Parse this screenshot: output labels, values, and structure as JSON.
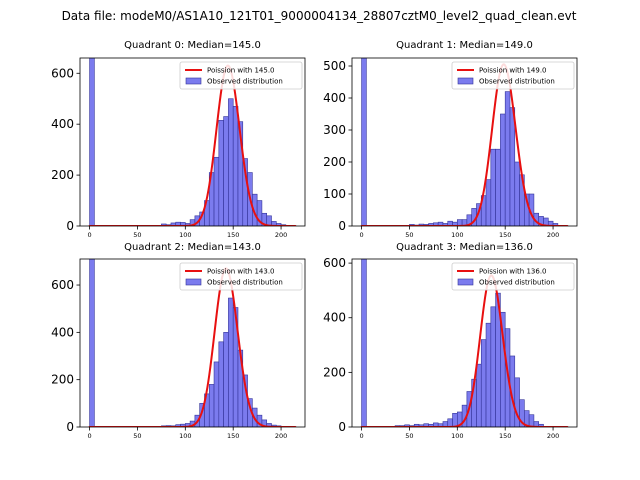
{
  "figure": {
    "title": "Data file: modeM0/AS1A10_121T01_9000004134_28807cztM0_level2_quad_clean.evt"
  },
  "colors": {
    "bar_fill": "#7b7bee",
    "bar_edge": "#333399",
    "fit_line": "#e81010"
  },
  "chart_data": [
    {
      "type": "bar",
      "title": "Quadrant 0: Median=145.0",
      "median": 145.0,
      "xlim": [
        -10,
        225
      ],
      "ylim": [
        0,
        660
      ],
      "xticks": [
        0,
        50,
        100,
        150,
        200
      ],
      "yticks": [
        0,
        200,
        400,
        600
      ],
      "bin_width": 5,
      "bins": [
        [
          0,
          660
        ],
        [
          75,
          8
        ],
        [
          80,
          5
        ],
        [
          85,
          12
        ],
        [
          90,
          15
        ],
        [
          95,
          14
        ],
        [
          100,
          10
        ],
        [
          105,
          25
        ],
        [
          110,
          40
        ],
        [
          115,
          55
        ],
        [
          120,
          100
        ],
        [
          125,
          210
        ],
        [
          130,
          270
        ],
        [
          135,
          415
        ],
        [
          140,
          430
        ],
        [
          145,
          500
        ],
        [
          150,
          470
        ],
        [
          155,
          410
        ],
        [
          160,
          265
        ],
        [
          165,
          210
        ],
        [
          170,
          125
        ],
        [
          175,
          100
        ],
        [
          180,
          50
        ],
        [
          185,
          40
        ],
        [
          190,
          18
        ],
        [
          195,
          10
        ],
        [
          200,
          5
        ]
      ],
      "fit": {
        "lambda": 145.0,
        "amplitude": 630
      },
      "legend": [
        "Poission with 145.0",
        "Observed distribution"
      ]
    },
    {
      "type": "bar",
      "title": "Quadrant 1: Median=149.0",
      "median": 149.0,
      "xlim": [
        -10,
        225
      ],
      "ylim": [
        0,
        525
      ],
      "xticks": [
        0,
        50,
        100,
        150,
        200
      ],
      "yticks": [
        0,
        100,
        200,
        300,
        400,
        500
      ],
      "bin_width": 5,
      "bins": [
        [
          0,
          525
        ],
        [
          50,
          5
        ],
        [
          55,
          3
        ],
        [
          60,
          6
        ],
        [
          65,
          5
        ],
        [
          70,
          8
        ],
        [
          75,
          10
        ],
        [
          80,
          12
        ],
        [
          85,
          8
        ],
        [
          90,
          15
        ],
        [
          95,
          12
        ],
        [
          100,
          20
        ],
        [
          105,
          20
        ],
        [
          110,
          35
        ],
        [
          115,
          55
        ],
        [
          120,
          70
        ],
        [
          125,
          95
        ],
        [
          130,
          145
        ],
        [
          135,
          240
        ],
        [
          140,
          240
        ],
        [
          145,
          350
        ],
        [
          150,
          420
        ],
        [
          155,
          370
        ],
        [
          160,
          200
        ],
        [
          165,
          160
        ],
        [
          170,
          100
        ],
        [
          175,
          100
        ],
        [
          180,
          40
        ],
        [
          185,
          30
        ],
        [
          190,
          25
        ],
        [
          195,
          15
        ],
        [
          200,
          8
        ]
      ],
      "fit": {
        "lambda": 149.0,
        "amplitude": 505
      },
      "legend": [
        "Poission with 149.0",
        "Observed distribution"
      ]
    },
    {
      "type": "bar",
      "title": "Quadrant 2: Median=143.0",
      "median": 143.0,
      "xlim": [
        -10,
        225
      ],
      "ylim": [
        0,
        710
      ],
      "xticks": [
        0,
        50,
        100,
        150,
        200
      ],
      "yticks": [
        0,
        200,
        400,
        600
      ],
      "bin_width": 5,
      "bins": [
        [
          0,
          710
        ],
        [
          75,
          5
        ],
        [
          80,
          6
        ],
        [
          85,
          5
        ],
        [
          90,
          10
        ],
        [
          95,
          12
        ],
        [
          100,
          15
        ],
        [
          105,
          25
        ],
        [
          110,
          50
        ],
        [
          115,
          100
        ],
        [
          120,
          140
        ],
        [
          125,
          180
        ],
        [
          130,
          275
        ],
        [
          135,
          360
        ],
        [
          140,
          400
        ],
        [
          145,
          545
        ],
        [
          150,
          505
        ],
        [
          155,
          325
        ],
        [
          160,
          220
        ],
        [
          165,
          120
        ],
        [
          170,
          80
        ],
        [
          175,
          50
        ],
        [
          180,
          30
        ],
        [
          185,
          15
        ],
        [
          190,
          8
        ],
        [
          195,
          5
        ]
      ],
      "fit": {
        "lambda": 143.0,
        "amplitude": 670
      },
      "legend": [
        "Poission with 143.0",
        "Observed distribution"
      ]
    },
    {
      "type": "bar",
      "title": "Quadrant 3: Median=136.0",
      "median": 136.0,
      "xlim": [
        -10,
        225
      ],
      "ylim": [
        0,
        615
      ],
      "xticks": [
        0,
        50,
        100,
        150,
        200
      ],
      "yticks": [
        0,
        200,
        400,
        600
      ],
      "bin_width": 5,
      "bins": [
        [
          0,
          615
        ],
        [
          35,
          5
        ],
        [
          40,
          5
        ],
        [
          45,
          8
        ],
        [
          50,
          5
        ],
        [
          55,
          10
        ],
        [
          60,
          8
        ],
        [
          65,
          12
        ],
        [
          70,
          10
        ],
        [
          75,
          15
        ],
        [
          80,
          12
        ],
        [
          85,
          20
        ],
        [
          90,
          30
        ],
        [
          95,
          50
        ],
        [
          100,
          55
        ],
        [
          105,
          80
        ],
        [
          110,
          130
        ],
        [
          115,
          175
        ],
        [
          120,
          230
        ],
        [
          125,
          320
        ],
        [
          130,
          380
        ],
        [
          135,
          440
        ],
        [
          140,
          490
        ],
        [
          145,
          420
        ],
        [
          150,
          360
        ],
        [
          155,
          260
        ],
        [
          160,
          180
        ],
        [
          165,
          100
        ],
        [
          170,
          60
        ],
        [
          175,
          45
        ],
        [
          180,
          20
        ],
        [
          185,
          10
        ]
      ],
      "fit": {
        "lambda": 136.0,
        "amplitude": 555
      },
      "legend": [
        "Poission with 136.0",
        "Observed distribution"
      ]
    }
  ]
}
